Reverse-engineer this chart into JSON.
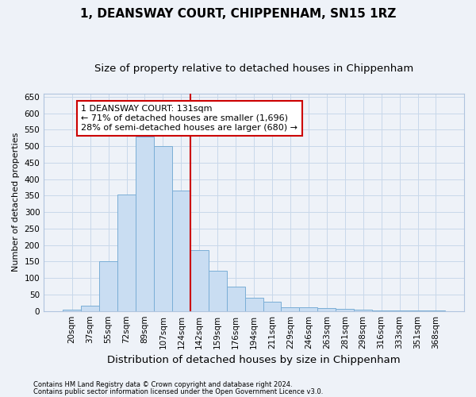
{
  "title": "1, DEANSWAY COURT, CHIPPENHAM, SN15 1RZ",
  "subtitle": "Size of property relative to detached houses in Chippenham",
  "xlabel": "Distribution of detached houses by size in Chippenham",
  "ylabel": "Number of detached properties",
  "footnote1": "Contains HM Land Registry data © Crown copyright and database right 2024.",
  "footnote2": "Contains public sector information licensed under the Open Government Licence v3.0.",
  "categories": [
    "20sqm",
    "37sqm",
    "55sqm",
    "72sqm",
    "89sqm",
    "107sqm",
    "124sqm",
    "142sqm",
    "159sqm",
    "176sqm",
    "194sqm",
    "211sqm",
    "229sqm",
    "246sqm",
    "263sqm",
    "281sqm",
    "298sqm",
    "316sqm",
    "333sqm",
    "351sqm",
    "368sqm"
  ],
  "values": [
    5,
    15,
    150,
    353,
    530,
    500,
    365,
    185,
    123,
    75,
    40,
    27,
    12,
    12,
    10,
    7,
    3,
    2,
    1,
    1,
    1
  ],
  "bar_color": "#c9ddf2",
  "bar_edge_color": "#7aaed6",
  "vline_color": "#cc0000",
  "annotation_line1": "1 DEANSWAY COURT: 131sqm",
  "annotation_line2": "← 71% of detached houses are smaller (1,696)",
  "annotation_line3": "28% of semi-detached houses are larger (680) →",
  "annotation_box_color": "#ffffff",
  "annotation_box_edge": "#cc0000",
  "ylim": [
    0,
    660
  ],
  "yticks": [
    0,
    50,
    100,
    150,
    200,
    250,
    300,
    350,
    400,
    450,
    500,
    550,
    600,
    650
  ],
  "grid_color": "#c8d8ea",
  "bg_color": "#eef2f8",
  "title_fontsize": 11,
  "subtitle_fontsize": 9.5,
  "xlabel_fontsize": 9.5,
  "ylabel_fontsize": 8,
  "tick_fontsize": 7.5,
  "annot_fontsize": 8,
  "footnote_fontsize": 6
}
